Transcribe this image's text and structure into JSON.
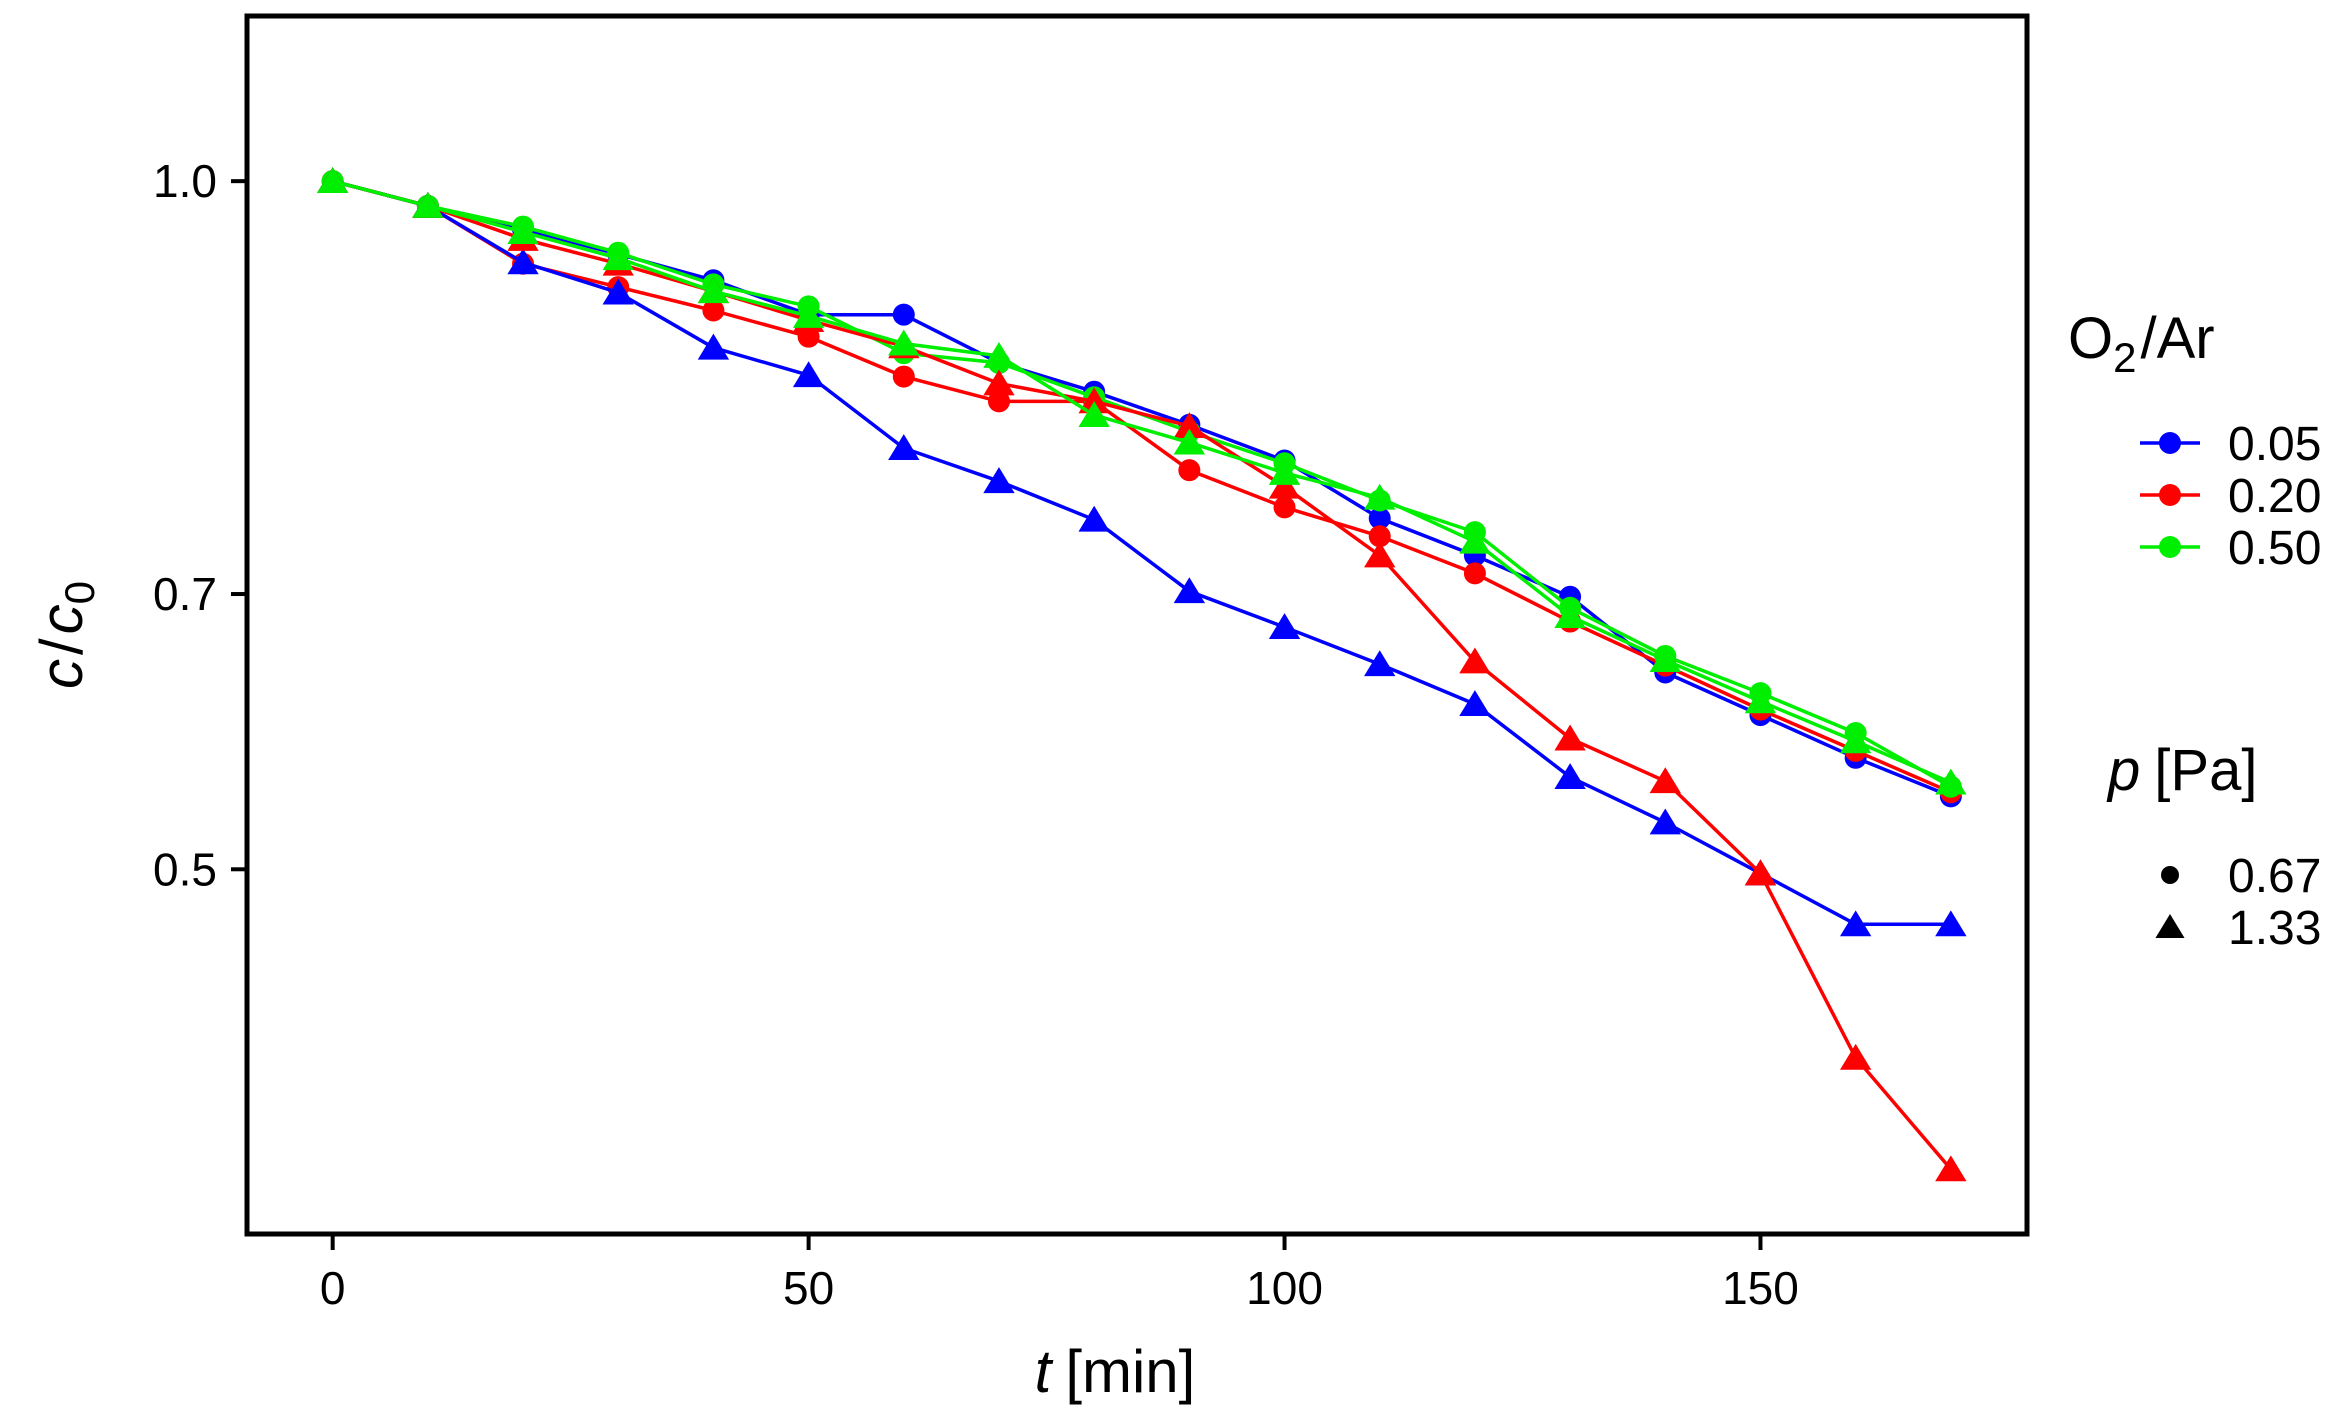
{
  "chart_data": {
    "type": "line",
    "title": "",
    "xlabel": {
      "symbol": "t",
      "unit": "[min]"
    },
    "ylabel": {
      "c": "c",
      "sep": "/",
      "c0": "c",
      "c0_sub": "0"
    },
    "xlim": [
      -9,
      178
    ],
    "ylim": [
      0.235,
      1.12
    ],
    "x_ticks": [
      0,
      50,
      100,
      150
    ],
    "x_tick_labels": [
      "0",
      "50",
      "100",
      "150"
    ],
    "y_ticks": [
      0.5,
      0.7,
      1.0
    ],
    "y_tick_labels": [
      "0.5",
      "0.7",
      "1.0"
    ],
    "grid": false,
    "x": [
      0,
      10,
      20,
      30,
      40,
      50,
      60,
      70,
      80,
      90,
      100,
      110,
      120,
      130,
      140,
      150,
      160,
      170
    ],
    "series": [
      {
        "name": "0.05 / 0.67",
        "ratio": "0.05",
        "pressure": "0.67",
        "color": "#0000ff",
        "marker": "circle",
        "values": [
          1.0,
          0.982,
          0.965,
          0.947,
          0.928,
          0.903,
          0.903,
          0.868,
          0.847,
          0.823,
          0.797,
          0.755,
          0.728,
          0.698,
          0.643,
          0.612,
          0.581,
          0.553
        ]
      },
      {
        "name": "0.20 / 0.67",
        "ratio": "0.20",
        "pressure": "0.67",
        "color": "#ff0000",
        "marker": "circle",
        "values": [
          1.0,
          0.982,
          0.94,
          0.923,
          0.906,
          0.887,
          0.858,
          0.84,
          0.84,
          0.79,
          0.763,
          0.742,
          0.715,
          0.68,
          0.648,
          0.616,
          0.586,
          0.556
        ]
      },
      {
        "name": "0.50 / 0.67",
        "ratio": "0.50",
        "pressure": "0.67",
        "color": "#00ee00",
        "marker": "circle",
        "values": [
          1.0,
          0.982,
          0.967,
          0.948,
          0.925,
          0.909,
          0.875,
          0.868,
          0.843,
          0.818,
          0.795,
          0.768,
          0.745,
          0.69,
          0.655,
          0.628,
          0.599,
          0.56
        ]
      },
      {
        "name": "0.05 / 1.33",
        "ratio": "0.05",
        "pressure": "1.33",
        "color": "#0000ff",
        "marker": "triangle",
        "values": [
          1.0,
          0.982,
          0.941,
          0.919,
          0.879,
          0.859,
          0.806,
          0.782,
          0.754,
          0.702,
          0.676,
          0.649,
          0.62,
          0.567,
          0.534,
          0.497,
          0.46,
          0.46
        ]
      },
      {
        "name": "0.20 / 1.33",
        "ratio": "0.20",
        "pressure": "1.33",
        "color": "#ff0000",
        "marker": "triangle",
        "values": [
          1.0,
          0.982,
          0.958,
          0.94,
          0.92,
          0.899,
          0.88,
          0.853,
          0.84,
          0.822,
          0.778,
          0.728,
          0.651,
          0.595,
          0.564,
          0.497,
          0.363,
          0.282
        ]
      },
      {
        "name": "0.50 / 1.33",
        "ratio": "0.50",
        "pressure": "1.33",
        "color": "#00ee00",
        "marker": "triangle",
        "values": [
          1.0,
          0.982,
          0.963,
          0.944,
          0.92,
          0.902,
          0.882,
          0.873,
          0.83,
          0.81,
          0.788,
          0.77,
          0.738,
          0.684,
          0.652,
          0.622,
          0.593,
          0.563
        ]
      }
    ],
    "legend": {
      "placement": "right",
      "ratio_title": {
        "main": "O",
        "sub": "2",
        "rest": "/Ar"
      },
      "ratio_entries": [
        {
          "label": "0.05",
          "color": "#0000ff"
        },
        {
          "label": "0.20",
          "color": "#ff0000"
        },
        {
          "label": "0.50",
          "color": "#00ee00"
        }
      ],
      "pressure_title": {
        "symbol": "p",
        "unit": "[Pa]"
      },
      "pressure_entries": [
        {
          "label": "0.67",
          "marker": "circle"
        },
        {
          "label": "1.33",
          "marker": "triangle"
        }
      ]
    }
  }
}
